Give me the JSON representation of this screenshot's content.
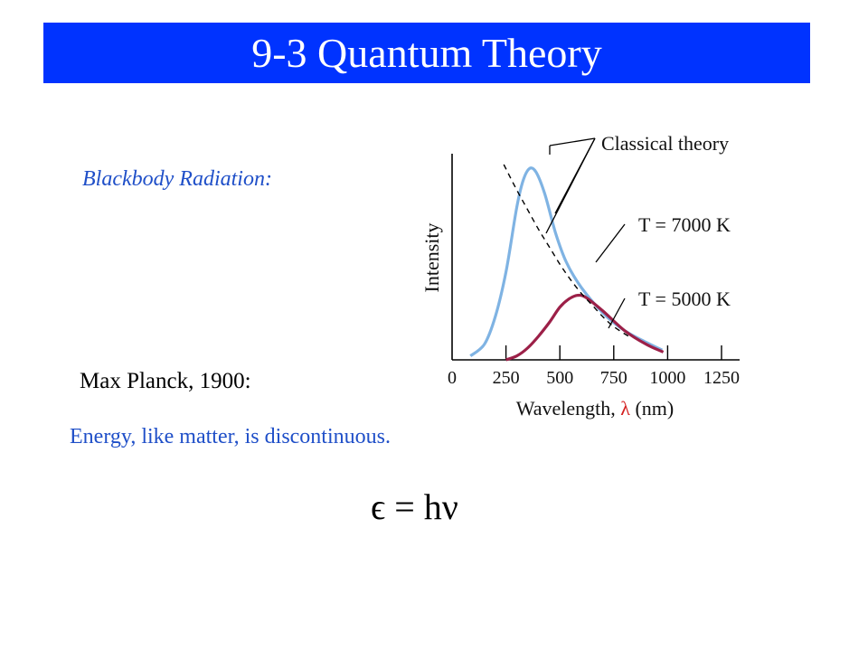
{
  "header": {
    "title": "9-3 Quantum Theory"
  },
  "content": {
    "subtitle": "Blackbody Radiation:",
    "planck": "Max Planck, 1900:",
    "energy_statement": "Energy, like matter, is discontinuous.",
    "equation": "ϵ = hν"
  },
  "colors": {
    "title_bg": "#0033ff",
    "accent_text": "#1f4fc8",
    "curve_7000": "#7fb3e3",
    "curve_5000": "#9c2048",
    "lambda": "#d42020"
  },
  "chart_data": {
    "type": "line",
    "xlabel_prefix": "Wavelength, ",
    "xlabel_symbol": "λ",
    "xlabel_suffix": " (nm)",
    "ylabel": "Intensity",
    "x_ticks": [
      0,
      250,
      500,
      750,
      1000,
      1250
    ],
    "xlim": [
      0,
      1300
    ],
    "ylim": [
      0,
      1
    ],
    "series": [
      {
        "name": "T = 7000 K",
        "color": "#7fb3e3",
        "points": [
          [
            85,
            0.02
          ],
          [
            150,
            0.08
          ],
          [
            200,
            0.22
          ],
          [
            250,
            0.45
          ],
          [
            300,
            0.78
          ],
          [
            330,
            0.92
          ],
          [
            360,
            0.98
          ],
          [
            390,
            0.96
          ],
          [
            430,
            0.85
          ],
          [
            480,
            0.65
          ],
          [
            530,
            0.5
          ],
          [
            600,
            0.37
          ],
          [
            700,
            0.24
          ],
          [
            800,
            0.15
          ],
          [
            900,
            0.09
          ],
          [
            975,
            0.05
          ]
        ]
      },
      {
        "name": "T = 5000 K",
        "color": "#9c2048",
        "points": [
          [
            250,
            0.0
          ],
          [
            300,
            0.02
          ],
          [
            350,
            0.06
          ],
          [
            400,
            0.12
          ],
          [
            450,
            0.19
          ],
          [
            500,
            0.27
          ],
          [
            540,
            0.31
          ],
          [
            580,
            0.33
          ],
          [
            620,
            0.32
          ],
          [
            700,
            0.25
          ],
          [
            800,
            0.15
          ],
          [
            900,
            0.08
          ],
          [
            980,
            0.04
          ]
        ]
      },
      {
        "name": "Classical theory",
        "color": "#000000",
        "dashed": true,
        "points": [
          [
            240,
            1.0
          ],
          [
            300,
            0.87
          ],
          [
            350,
            0.77
          ],
          [
            400,
            0.67
          ],
          [
            450,
            0.58
          ],
          [
            500,
            0.49
          ],
          [
            550,
            0.41
          ],
          [
            600,
            0.34
          ],
          [
            650,
            0.28
          ],
          [
            700,
            0.22
          ],
          [
            750,
            0.17
          ],
          [
            820,
            0.12
          ]
        ]
      }
    ]
  }
}
